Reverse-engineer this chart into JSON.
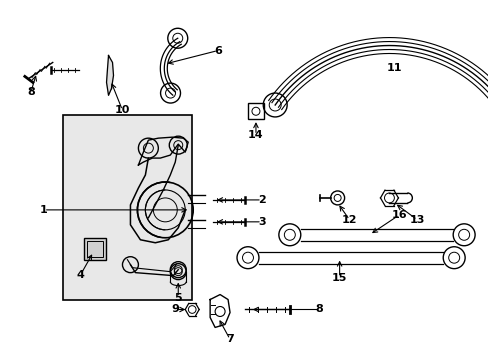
{
  "background_color": "#ffffff",
  "box_fill": "#e8e8e8",
  "line_color": "#000000",
  "figsize": [
    4.89,
    3.6
  ],
  "dpi": 100
}
